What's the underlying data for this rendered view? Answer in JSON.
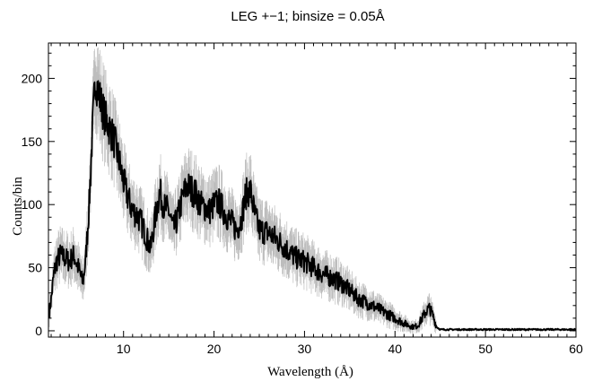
{
  "chart_data": {
    "type": "line",
    "title": "LEG +−1; binsize = 0.05Å",
    "xlabel": "Wavelength (Å)",
    "ylabel": "Counts/bin",
    "xlim": [
      1.7,
      60
    ],
    "ylim": [
      -5,
      228
    ],
    "x_ticks": [
      10,
      20,
      30,
      40,
      50,
      60
    ],
    "y_ticks": [
      0,
      50,
      100,
      150,
      200
    ],
    "grid": false,
    "colors": {
      "line": "#000000",
      "error_band": "#bdbdbd",
      "axes": "#000000"
    },
    "series": [
      {
        "x": [
          1.8,
          2.0,
          2.3,
          2.6,
          3.0,
          3.5,
          4.0,
          4.5,
          5.0,
          5.5,
          5.8,
          6.2,
          6.6,
          6.9,
          7.2,
          7.6,
          8.0,
          8.5,
          9.0,
          9.5,
          10.0,
          10.5,
          11.0,
          11.5,
          12.0,
          12.5,
          13.0,
          13.5,
          14.0,
          14.5,
          15.0,
          15.5,
          16.0,
          16.5,
          17.0,
          17.5,
          18.0,
          18.5,
          19.0,
          19.5,
          20.0,
          20.5,
          21.0,
          21.5,
          22.0,
          22.5,
          23.0,
          23.5,
          24.0,
          24.5,
          25.0,
          26.0,
          27.0,
          28.0,
          29.0,
          30.0,
          31.0,
          32.0,
          33.0,
          34.0,
          35.0,
          36.0,
          37.0,
          38.0,
          39.0,
          40.0,
          41.0,
          42.0,
          42.5,
          43.0,
          43.5,
          43.8,
          44.2,
          44.6,
          45.0,
          46.0,
          48.0,
          50.0,
          52.0,
          55.0,
          58.0,
          60.0
        ],
        "y": [
          15,
          25,
          45,
          55,
          60,
          58,
          55,
          60,
          50,
          38,
          55,
          100,
          165,
          200,
          190,
          178,
          168,
          160,
          150,
          135,
          118,
          105,
          95,
          92,
          85,
          75,
          65,
          90,
          110,
          98,
          95,
          80,
          90,
          105,
          115,
          112,
          108,
          100,
          98,
          95,
          100,
          102,
          96,
          90,
          85,
          80,
          88,
          108,
          112,
          92,
          80,
          78,
          72,
          65,
          58,
          55,
          50,
          45,
          42,
          38,
          32,
          25,
          22,
          18,
          14,
          10,
          6,
          3,
          4,
          10,
          16,
          18,
          12,
          3,
          1,
          1,
          1,
          1,
          1,
          1,
          1,
          1
        ]
      }
    ]
  }
}
